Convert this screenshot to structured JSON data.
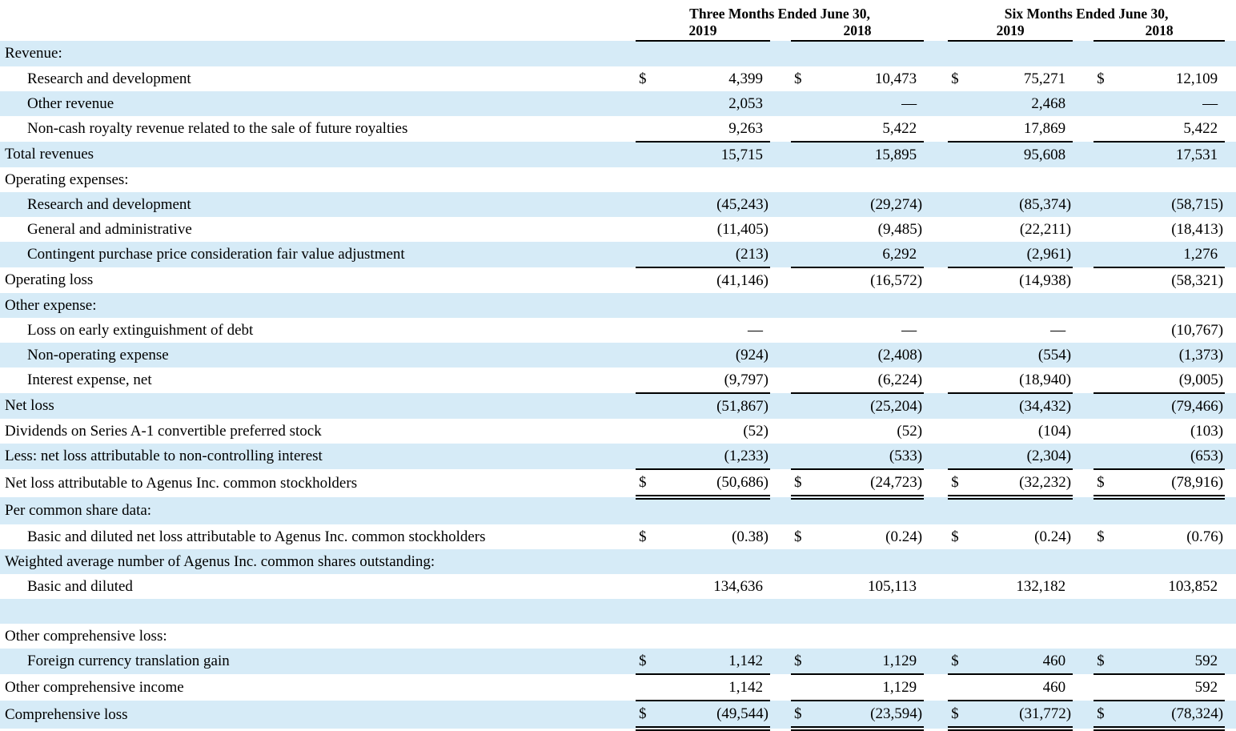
{
  "table": {
    "colors": {
      "row_shade": "#d6ebf7",
      "rule": "#000000",
      "text": "#000000"
    },
    "currency_symbol": "$",
    "em_dash": "—",
    "header": {
      "groups": [
        {
          "period": "Three Months Ended June 30,",
          "years": [
            "2019",
            "2018"
          ]
        },
        {
          "period": "Six Months Ended June 30,",
          "years": [
            "2019",
            "2018"
          ]
        }
      ]
    },
    "rows": [
      {
        "label": "Revenue:",
        "indent": false,
        "shaded": true,
        "dollar": false,
        "values": null,
        "underline": null
      },
      {
        "label": "Research and development",
        "indent": true,
        "shaded": false,
        "dollar": true,
        "values": [
          "4,399",
          "10,473",
          "75,271",
          "12,109"
        ],
        "underline": null
      },
      {
        "label": "Other revenue",
        "indent": true,
        "shaded": true,
        "dollar": false,
        "values": [
          "2,053",
          "—",
          "2,468",
          "—"
        ],
        "underline": null
      },
      {
        "label": "Non-cash royalty revenue related to the sale of future royalties",
        "indent": true,
        "shaded": false,
        "dollar": false,
        "values": [
          "9,263",
          "5,422",
          "17,869",
          "5,422"
        ],
        "underline": "single"
      },
      {
        "label": "Total revenues",
        "indent": false,
        "shaded": true,
        "dollar": false,
        "values": [
          "15,715",
          "15,895",
          "95,608",
          "17,531"
        ],
        "underline": null
      },
      {
        "label": "Operating expenses:",
        "indent": false,
        "shaded": false,
        "dollar": false,
        "values": null,
        "underline": null
      },
      {
        "label": "Research and development",
        "indent": true,
        "shaded": true,
        "dollar": false,
        "values": [
          "(45,243)",
          "(29,274)",
          "(85,374)",
          "(58,715)"
        ],
        "underline": null
      },
      {
        "label": "General and administrative",
        "indent": true,
        "shaded": false,
        "dollar": false,
        "values": [
          "(11,405)",
          "(9,485)",
          "(22,211)",
          "(18,413)"
        ],
        "underline": null
      },
      {
        "label": "Contingent purchase price consideration fair value adjustment",
        "indent": true,
        "shaded": true,
        "dollar": false,
        "values": [
          "(213)",
          "6,292",
          "(2,961)",
          "1,276"
        ],
        "underline": "single"
      },
      {
        "label": "Operating loss",
        "indent": false,
        "shaded": false,
        "dollar": false,
        "values": [
          "(41,146)",
          "(16,572)",
          "(14,938)",
          "(58,321)"
        ],
        "underline": null
      },
      {
        "label": "Other expense:",
        "indent": false,
        "shaded": true,
        "dollar": false,
        "values": null,
        "underline": null
      },
      {
        "label": "Loss on early extinguishment of debt",
        "indent": true,
        "shaded": false,
        "dollar": false,
        "values": [
          "—",
          "—",
          "—",
          "(10,767)"
        ],
        "underline": null
      },
      {
        "label": "Non-operating expense",
        "indent": true,
        "shaded": true,
        "dollar": false,
        "values": [
          "(924)",
          "(2,408)",
          "(554)",
          "(1,373)"
        ],
        "underline": null
      },
      {
        "label": "Interest expense, net",
        "indent": true,
        "shaded": false,
        "dollar": false,
        "values": [
          "(9,797)",
          "(6,224)",
          "(18,940)",
          "(9,005)"
        ],
        "underline": "single"
      },
      {
        "label": "Net loss",
        "indent": false,
        "shaded": true,
        "dollar": false,
        "values": [
          "(51,867)",
          "(25,204)",
          "(34,432)",
          "(79,466)"
        ],
        "underline": null
      },
      {
        "label": "Dividends on Series A-1 convertible preferred stock",
        "indent": false,
        "shaded": false,
        "dollar": false,
        "values": [
          "(52)",
          "(52)",
          "(104)",
          "(103)"
        ],
        "underline": null
      },
      {
        "label": "Less: net loss attributable to non-controlling interest",
        "indent": false,
        "shaded": true,
        "dollar": false,
        "values": [
          "(1,233)",
          "(533)",
          "(2,304)",
          "(653)"
        ],
        "underline": "single"
      },
      {
        "label": "Net loss attributable to Agenus Inc. common stockholders",
        "indent": false,
        "shaded": false,
        "dollar": true,
        "values": [
          "(50,686)",
          "(24,723)",
          "(32,232)",
          "(78,916)"
        ],
        "underline": "double"
      },
      {
        "label": "Per common share data:",
        "indent": false,
        "shaded": true,
        "dollar": false,
        "values": null,
        "underline": null
      },
      {
        "label": "Basic and diluted net loss attributable to Agenus Inc. common stockholders",
        "indent": true,
        "shaded": false,
        "dollar": true,
        "values": [
          "(0.38)",
          "(0.24)",
          "(0.24)",
          "(0.76)"
        ],
        "underline": null
      },
      {
        "label": "Weighted average number of Agenus Inc. common shares outstanding:",
        "indent": false,
        "shaded": true,
        "dollar": false,
        "values": null,
        "underline": null
      },
      {
        "label": "Basic and diluted",
        "indent": true,
        "shaded": false,
        "dollar": false,
        "values": [
          "134,636",
          "105,113",
          "132,182",
          "103,852"
        ],
        "underline": null
      },
      {
        "label": "",
        "indent": false,
        "shaded": true,
        "dollar": false,
        "values": null,
        "underline": null,
        "spacer": true
      },
      {
        "label": "Other comprehensive loss:",
        "indent": false,
        "shaded": false,
        "dollar": false,
        "values": null,
        "underline": null
      },
      {
        "label": "Foreign currency translation gain",
        "indent": true,
        "shaded": true,
        "dollar": true,
        "values": [
          "1,142",
          "1,129",
          "460",
          "592"
        ],
        "underline": "single"
      },
      {
        "label": "Other comprehensive income",
        "indent": false,
        "shaded": false,
        "dollar": false,
        "values": [
          "1,142",
          "1,129",
          "460",
          "592"
        ],
        "underline": "single"
      },
      {
        "label": "Comprehensive loss",
        "indent": false,
        "shaded": true,
        "dollar": true,
        "values": [
          "(49,544)",
          "(23,594)",
          "(31,772)",
          "(78,324)"
        ],
        "underline": "double"
      }
    ]
  }
}
